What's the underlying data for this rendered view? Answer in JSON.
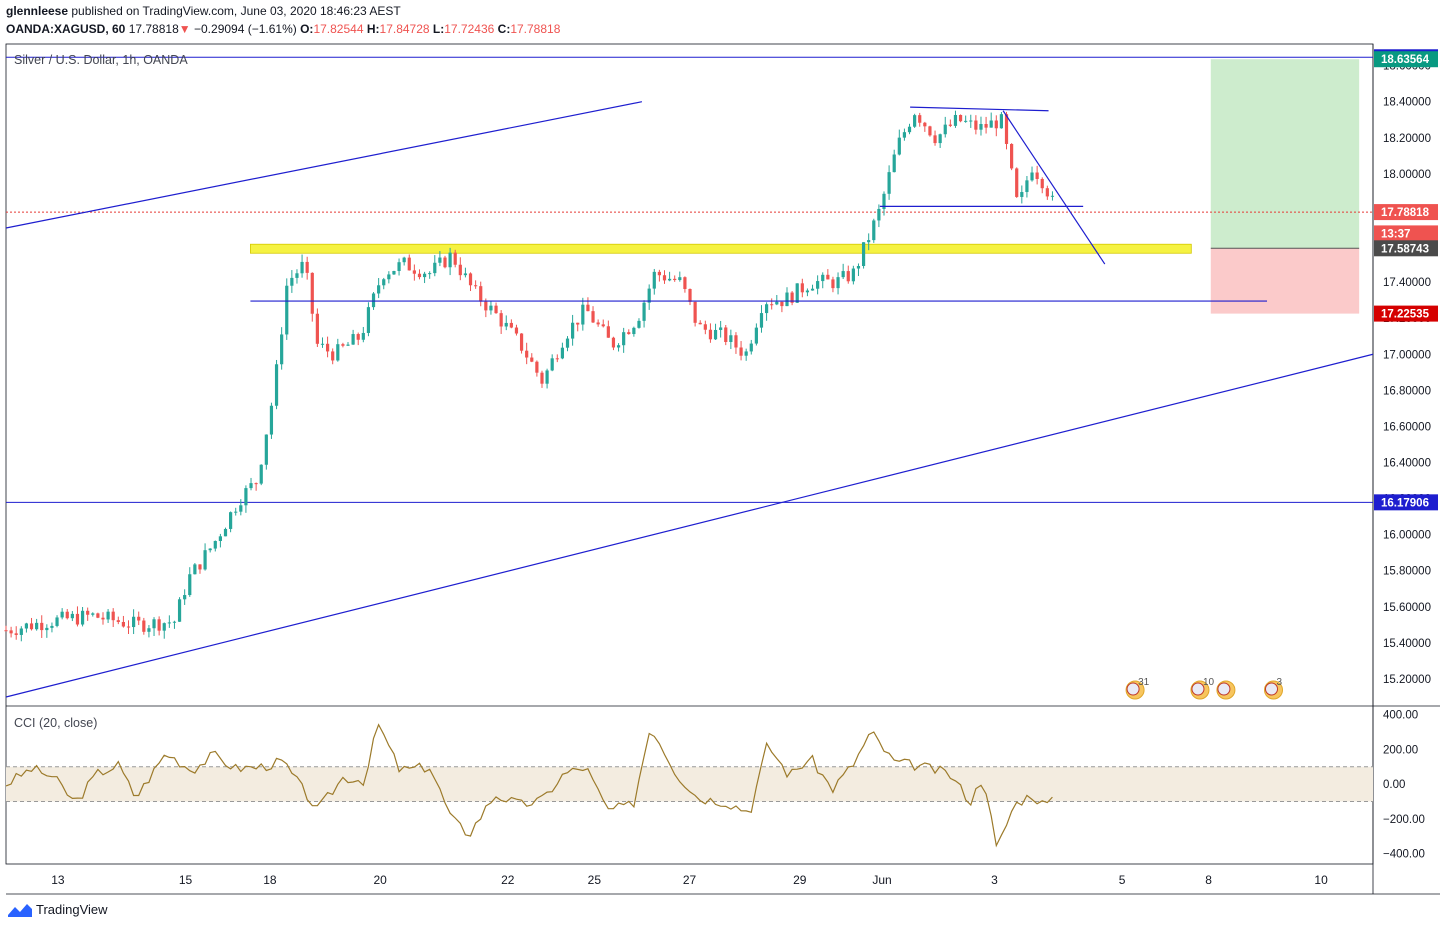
{
  "header": {
    "author": "glennleese",
    "published_text": "published on TradingView.com, June 03, 2020 18:46:23 AEST",
    "symbol": "OANDA:XAGUSD, 60",
    "last": "17.78818",
    "change_arrow": "▼",
    "change": "−0.29094 (−1.61%)",
    "o_label": "O:",
    "o": "17.82544",
    "h_label": "H:",
    "h": "17.84728",
    "l_label": "L:",
    "l": "17.72436",
    "c_label": "C:",
    "c": "17.78818"
  },
  "footer": {
    "brand": "TradingView"
  },
  "chart_data": [
    {
      "type": "candlestick",
      "title": "Silver / U.S. Dollar, 1h, OANDA",
      "ylim": [
        15.05,
        18.72
      ],
      "yticks": [
        15.2,
        15.4,
        15.6,
        15.8,
        16.0,
        16.2,
        16.4,
        16.6,
        16.8,
        17.0,
        17.2,
        17.4,
        17.6,
        17.8,
        18.0,
        18.2,
        18.4,
        18.6
      ],
      "ytick_labels": [
        "15.20000",
        "15.40000",
        "15.60000",
        "15.80000",
        "16.00000",
        "16.20000",
        "16.40000",
        "16.60000",
        "16.80000",
        "17.00000",
        "17.20000",
        "17.40000",
        "17.60000",
        "17.80000",
        "18.00000",
        "18.20000",
        "18.40000",
        "18.60000"
      ],
      "x_day_positions": [
        0.0,
        3.05,
        6.45,
        8.4,
        11.0,
        13.95,
        15.95,
        18.2,
        20.25,
        22.45,
        25.05,
        27.55,
        30.35,
        32.35,
        34.4,
        37.35
      ],
      "xtick_labels": [
        "13",
        "15",
        "18",
        "20",
        "22",
        "25",
        "27",
        "29",
        "Jun",
        "3",
        "5",
        "8",
        "10"
      ],
      "xtick_days": [
        1.2,
        4.15,
        6.1,
        8.65,
        11.6,
        13.6,
        15.8,
        18.35,
        20.25,
        22.85,
        25.8,
        27.8,
        30.4
      ],
      "x_range_days": [
        0,
        31.6
      ],
      "keypoints": [
        [
          0.0,
          15.47
        ],
        [
          1.0,
          15.52
        ],
        [
          2.0,
          15.55
        ],
        [
          3.0,
          15.5
        ],
        [
          3.9,
          15.52
        ],
        [
          4.2,
          15.75
        ],
        [
          4.8,
          15.95
        ],
        [
          5.4,
          16.2
        ],
        [
          5.8,
          16.3
        ],
        [
          6.2,
          16.8
        ],
        [
          6.5,
          17.4
        ],
        [
          6.9,
          17.5
        ],
        [
          7.2,
          17.05
        ],
        [
          7.6,
          17.0
        ],
        [
          8.2,
          17.1
        ],
        [
          8.7,
          17.45
        ],
        [
          9.2,
          17.5
        ],
        [
          9.8,
          17.45
        ],
        [
          10.3,
          17.55
        ],
        [
          10.8,
          17.35
        ],
        [
          11.4,
          17.2
        ],
        [
          11.9,
          17.05
        ],
        [
          12.4,
          16.85
        ],
        [
          12.9,
          17.1
        ],
        [
          13.4,
          17.25
        ],
        [
          14.0,
          17.05
        ],
        [
          14.6,
          17.2
        ],
        [
          15.0,
          17.45
        ],
        [
          15.6,
          17.4
        ],
        [
          16.0,
          17.15
        ],
        [
          16.6,
          17.1
        ],
        [
          17.1,
          17.0
        ],
        [
          17.5,
          17.3
        ],
        [
          18.0,
          17.3
        ],
        [
          18.6,
          17.4
        ],
        [
          19.2,
          17.4
        ],
        [
          19.6,
          17.45
        ],
        [
          20.2,
          17.8
        ],
        [
          20.6,
          18.15
        ],
        [
          21.0,
          18.35
        ],
        [
          21.5,
          18.2
        ],
        [
          22.0,
          18.3
        ],
        [
          22.5,
          18.25
        ],
        [
          23.0,
          18.3
        ],
        [
          23.4,
          17.8
        ],
        [
          23.7,
          18.05
        ],
        [
          24.0,
          17.95
        ],
        [
          24.3,
          17.78
        ]
      ],
      "trendlines": [
        {
          "from": [
            0.0,
            17.7
          ],
          "to": [
            14.7,
            18.4
          ]
        },
        {
          "from": [
            0.0,
            15.1
          ],
          "to": [
            31.6,
            17.0
          ]
        },
        {
          "from": [
            20.9,
            18.37
          ],
          "to": [
            24.1,
            18.35
          ]
        },
        {
          "from": [
            23.05,
            18.35
          ],
          "to": [
            25.4,
            17.5
          ]
        },
        {
          "from": [
            20.2,
            17.82
          ],
          "to": [
            24.9,
            17.82
          ]
        },
        {
          "from": [
            5.65,
            17.295
          ],
          "to": [
            29.15,
            17.295
          ]
        }
      ],
      "horizontal_lines": [
        {
          "price": 18.64644,
          "color": "#1e1ecf"
        },
        {
          "price": 16.17906,
          "color": "#1e1ecf"
        },
        {
          "price": 17.78818,
          "color": "#e53935",
          "dashed": true
        }
      ],
      "support_zone": {
        "from_day": 5.65,
        "to_day": 27.4,
        "low": 17.56,
        "high": 17.61,
        "color": "#f5f242"
      },
      "position": {
        "from_day": 27.85,
        "to_day": 31.28,
        "entry": 17.58743,
        "target": 18.63564,
        "stop": 17.22535
      },
      "price_labels": [
        {
          "text": "18.64644",
          "price": 18.64644,
          "color": "#1e1ecf"
        },
        {
          "text": "18.63564",
          "price": 18.63564,
          "color": "#089981"
        },
        {
          "text": "17.78818",
          "price": 17.78818,
          "color": "#ef5350"
        },
        {
          "text": "13:37",
          "price": 17.67,
          "color": "#ef5350"
        },
        {
          "text": "17.58743",
          "price": 17.58743,
          "color": "#4a4a4a"
        },
        {
          "text": "17.22535",
          "price": 17.22535,
          "color": "#d50000"
        },
        {
          "text": "16.17906",
          "price": 16.17906,
          "color": "#1e1ecf"
        }
      ],
      "events": [
        {
          "day": 26.1,
          "label": "31"
        },
        {
          "day": 27.6,
          "label": "10"
        },
        {
          "day": 28.2,
          "label": ""
        },
        {
          "day": 29.3,
          "label": "3"
        }
      ]
    },
    {
      "type": "line",
      "title": "CCI (20, close)",
      "ylim": [
        -460,
        450
      ],
      "yticks": [
        400,
        200,
        0,
        -200,
        -400
      ],
      "ytick_labels": [
        "400.00",
        "200.00",
        "0.00",
        "−200.00",
        "−400.00"
      ],
      "band": [
        -100,
        100
      ],
      "color": "#9c7a2a",
      "keypoints": [
        [
          0.0,
          0
        ],
        [
          0.6,
          90
        ],
        [
          1.1,
          40
        ],
        [
          1.6,
          -110
        ],
        [
          2.1,
          60
        ],
        [
          2.6,
          110
        ],
        [
          3.0,
          -80
        ],
        [
          3.7,
          180
        ],
        [
          4.3,
          80
        ],
        [
          4.8,
          170
        ],
        [
          5.3,
          90
        ],
        [
          5.9,
          100
        ],
        [
          6.4,
          130
        ],
        [
          7.2,
          -150
        ],
        [
          7.8,
          40
        ],
        [
          8.3,
          20
        ],
        [
          8.6,
          350
        ],
        [
          9.1,
          80
        ],
        [
          9.8,
          100
        ],
        [
          10.3,
          -200
        ],
        [
          10.7,
          -290
        ],
        [
          11.3,
          -60
        ],
        [
          11.9,
          -120
        ],
        [
          12.4,
          -90
        ],
        [
          12.9,
          60
        ],
        [
          13.4,
          100
        ],
        [
          13.9,
          -150
        ],
        [
          14.5,
          -120
        ],
        [
          14.9,
          340
        ],
        [
          15.5,
          60
        ],
        [
          16.0,
          -80
        ],
        [
          16.6,
          -100
        ],
        [
          17.2,
          -160
        ],
        [
          17.6,
          230
        ],
        [
          18.1,
          50
        ],
        [
          18.6,
          150
        ],
        [
          19.1,
          -30
        ],
        [
          19.6,
          120
        ],
        [
          20.0,
          300
        ],
        [
          20.5,
          130
        ],
        [
          21.2,
          100
        ],
        [
          21.8,
          60
        ],
        [
          22.3,
          -100
        ],
        [
          22.6,
          50
        ],
        [
          22.9,
          -380
        ],
        [
          23.3,
          -120
        ],
        [
          23.7,
          -60
        ],
        [
          24.0,
          -120
        ],
        [
          24.3,
          -90
        ]
      ]
    }
  ]
}
